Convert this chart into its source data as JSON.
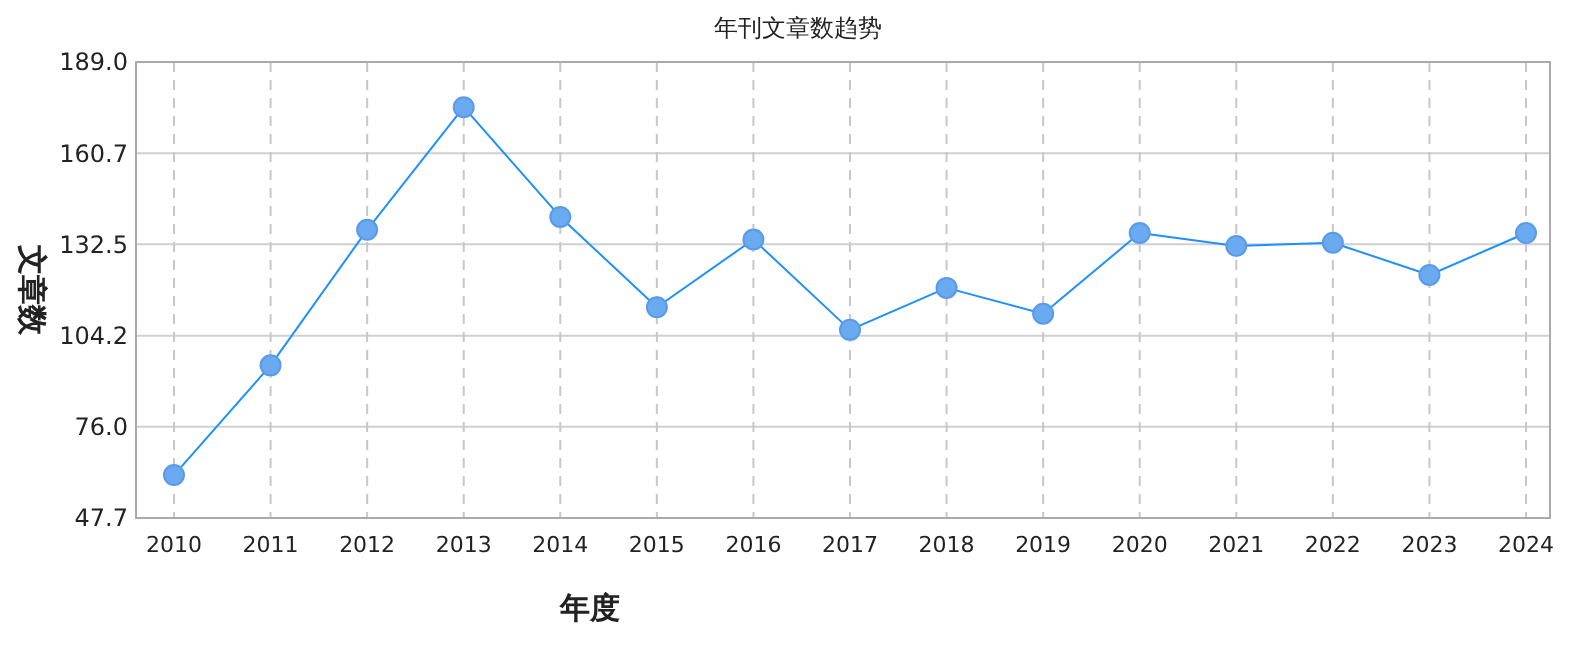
{
  "chart_data": {
    "type": "line",
    "title": "年刊文章数趋势",
    "xlabel": "年度",
    "ylabel": "文章数",
    "categories": [
      "2010",
      "2011",
      "2012",
      "2013",
      "2014",
      "2015",
      "2016",
      "2017",
      "2018",
      "2019",
      "2020",
      "2021",
      "2022",
      "2023",
      "2024"
    ],
    "series": [
      {
        "color": "#1e90ff",
        "values": [
          61,
          95,
          137,
          175,
          141,
          113,
          134,
          106,
          119,
          111,
          136,
          132,
          133,
          123,
          136
        ]
      }
    ],
    "ylim": [
      47.7,
      189.0
    ],
    "yticks": [
      {
        "value": 47.7,
        "label": "47.7"
      },
      {
        "value": 76.0,
        "label": "76.0"
      },
      {
        "value": 104.2,
        "label": "104.2"
      },
      {
        "value": 132.5,
        "label": "132.5"
      },
      {
        "value": 160.7,
        "label": "160.7"
      },
      {
        "value": 189.0,
        "label": "189.0"
      }
    ],
    "grid": true,
    "marker": "circle",
    "line_style": "solid"
  }
}
